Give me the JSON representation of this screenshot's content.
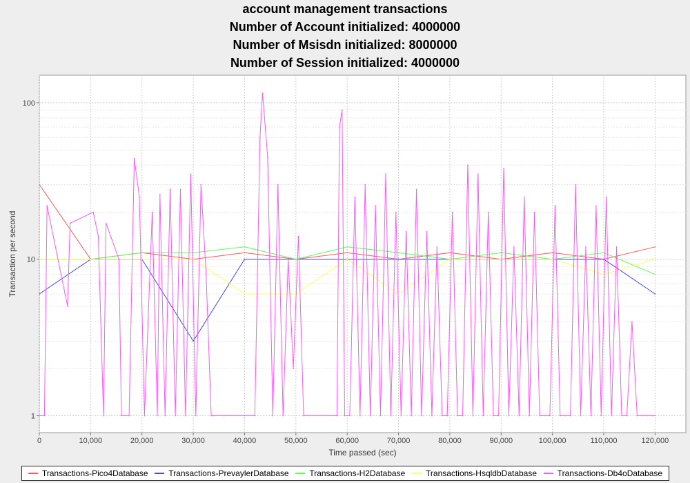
{
  "chart_data": {
    "type": "line",
    "title": [
      "account management transactions",
      "Number of Account initialized: 4000000",
      "Number of Msisdn initialized: 8000000",
      "Number of Session initialized: 4000000"
    ],
    "xlabel": "Time passed (sec)",
    "ylabel": "Transaction per second",
    "xlim": [
      0,
      126000
    ],
    "ylim": [
      0.78,
      150
    ],
    "yscale": "log",
    "xticks": [
      0,
      10000,
      20000,
      30000,
      40000,
      50000,
      60000,
      70000,
      80000,
      90000,
      100000,
      110000,
      120000
    ],
    "xtick_labels": [
      "0",
      "10,000",
      "20,000",
      "30,000",
      "40,000",
      "50,000",
      "60,000",
      "70,000",
      "80,000",
      "90,000",
      "100,000",
      "110,000",
      "120,000"
    ],
    "yticks": [
      1,
      10,
      100
    ],
    "ytick_labels": [
      "1",
      "10",
      "100"
    ],
    "grid": true,
    "legend_position": "bottom",
    "series": [
      {
        "name": "Transactions-Pico4Database",
        "color": "#ff5555",
        "x": [
          0,
          10000,
          20000,
          30000,
          40000,
          50000,
          60000,
          70000,
          80000,
          90000,
          100000,
          110000,
          120000
        ],
        "values": [
          30,
          10,
          11,
          10,
          11,
          10,
          11,
          10,
          11,
          10,
          11,
          10,
          12
        ]
      },
      {
        "name": "Transactions-PrevaylerDatabase",
        "color": "#4444ff",
        "x": [
          0,
          10000,
          20000,
          30000,
          40000,
          50000,
          60000,
          70000,
          80000,
          90000,
          100000,
          110000,
          120000
        ],
        "values": [
          6,
          10,
          10,
          3,
          10,
          10,
          10,
          10,
          10,
          10,
          10,
          10,
          6
        ]
      },
      {
        "name": "Transactions-H2Database",
        "color": "#55ff55",
        "x": [
          0,
          10000,
          20000,
          30000,
          40000,
          50000,
          60000,
          70000,
          80000,
          90000,
          100000,
          110000,
          120000
        ],
        "values": [
          10,
          10,
          11,
          11,
          12,
          10,
          12,
          11,
          10,
          11,
          10,
          11,
          8
        ]
      },
      {
        "name": "Transactions-HsqldbDatabase",
        "color": "#ffff55",
        "x": [
          0,
          10000,
          20000,
          30000,
          40000,
          50000,
          60000,
          70000,
          80000,
          90000,
          100000,
          110000,
          120000
        ],
        "values": [
          10,
          10,
          10,
          10,
          6,
          6,
          10,
          6,
          10,
          10,
          10,
          8,
          10
        ]
      },
      {
        "name": "Transactions-Db4oDatabase",
        "color": "#ff55ff",
        "x": [
          0,
          1000,
          1500,
          5500,
          6000,
          10500,
          11500,
          12500,
          13000,
          15500,
          16000,
          17500,
          18500,
          19500,
          20500,
          22000,
          23000,
          23500,
          24500,
          25500,
          26500,
          27500,
          28500,
          29500,
          30500,
          31500,
          32500,
          33500,
          34000,
          36000,
          40000,
          42000,
          43000,
          43500,
          44500,
          45500,
          46500,
          47500,
          48500,
          49500,
          50500,
          51500,
          52500,
          55000,
          58000,
          58500,
          59000,
          59500,
          60500,
          61500,
          62500,
          63500,
          64500,
          65500,
          66500,
          67500,
          68500,
          69500,
          70500,
          71500,
          72500,
          73500,
          74500,
          75500,
          76500,
          77500,
          78500,
          79500,
          80500,
          81500,
          82500,
          83500,
          84500,
          85500,
          86500,
          87500,
          88500,
          89500,
          90500,
          91500,
          92500,
          93500,
          94500,
          95500,
          96500,
          97500,
          98500,
          99500,
          100500,
          101500,
          102500,
          103500,
          104500,
          105500,
          106500,
          107500,
          108500,
          109500,
          110500,
          111500,
          112500,
          113500,
          114500,
          115500,
          116500,
          117500,
          118500,
          119500,
          120000
        ],
        "values": [
          1,
          1,
          22,
          5,
          17,
          20,
          14,
          1,
          17,
          10,
          1,
          1,
          44,
          25,
          1,
          20,
          1,
          26,
          1,
          28,
          1,
          28,
          1,
          35,
          1,
          30,
          8,
          1,
          1,
          1,
          1,
          1,
          60,
          115,
          45,
          1,
          30,
          1,
          10,
          2,
          14,
          1,
          1,
          1,
          1,
          70,
          90,
          1,
          1,
          25,
          1,
          30,
          1,
          22,
          1,
          35,
          1,
          20,
          1,
          15,
          1,
          28,
          1,
          15,
          1,
          12,
          1,
          1,
          20,
          1,
          1,
          40,
          1,
          35,
          1,
          20,
          1,
          1,
          38,
          1,
          12,
          1,
          25,
          1,
          20,
          1,
          1,
          1,
          22,
          1,
          1,
          1,
          30,
          1,
          12,
          1,
          22,
          1,
          25,
          1,
          12,
          1,
          1,
          4,
          1,
          1,
          1,
          1,
          1
        ]
      }
    ]
  }
}
